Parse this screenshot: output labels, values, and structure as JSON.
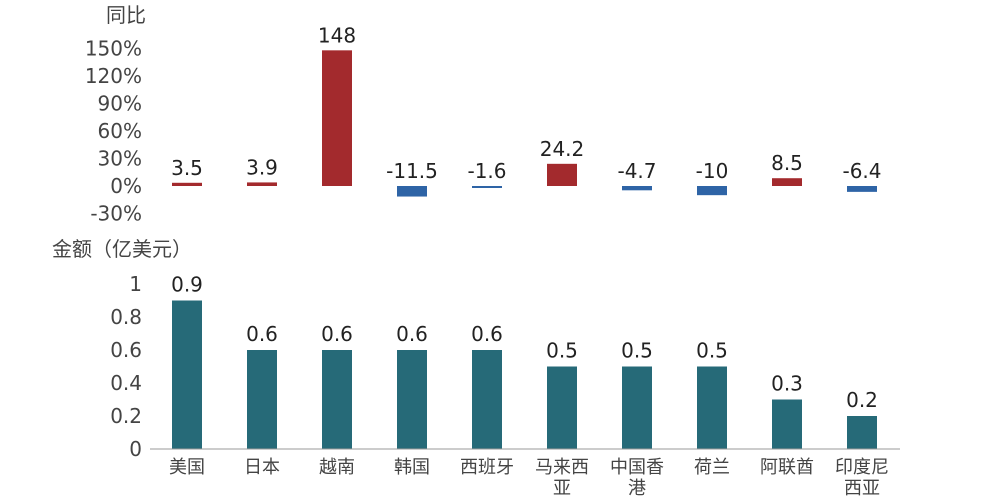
{
  "chart_data": [
    {
      "type": "bar",
      "ylabel": "同比",
      "yticks": [
        "150%",
        "120%",
        "90%",
        "60%",
        "30%",
        "0%",
        "-30%"
      ],
      "ylim": [
        -30,
        150
      ],
      "categories": [
        "美国",
        "日本",
        "越南",
        "韩国",
        "西班牙",
        "马来西亚",
        "中国香港",
        "荷兰",
        "阿联酋",
        "印度尼西亚"
      ],
      "values": [
        3.5,
        3.9,
        148,
        -11.5,
        -1.6,
        24.2,
        -4.7,
        -10,
        8.5,
        -6.4
      ],
      "data_labels": [
        "3.5",
        "3.9",
        "148",
        "-11.5",
        "-1.6",
        "24.2",
        "-4.7",
        "-10",
        "8.5",
        "-6.4"
      ],
      "colors": {
        "positive": "#a32a2d",
        "negative": "#2e64a6"
      },
      "grid": false
    },
    {
      "type": "bar",
      "ylabel": "金额（亿美元）",
      "yticks": [
        "1",
        "0.8",
        "0.6",
        "0.4",
        "0.2",
        "0"
      ],
      "ylim": [
        0,
        1
      ],
      "categories": [
        "美国",
        "日本",
        "越南",
        "韩国",
        "西班牙",
        "马来西亚",
        "中国香港",
        "荷兰",
        "阿联酋",
        "印度尼西亚"
      ],
      "category_lines": [
        [
          "美国"
        ],
        [
          "日本"
        ],
        [
          "越南"
        ],
        [
          "韩国"
        ],
        [
          "西班牙"
        ],
        [
          "马来西",
          "亚"
        ],
        [
          "中国香",
          "港"
        ],
        [
          "荷兰"
        ],
        [
          "阿联酋"
        ],
        [
          "印度尼",
          "西亚"
        ]
      ],
      "values": [
        0.9,
        0.6,
        0.6,
        0.6,
        0.6,
        0.5,
        0.5,
        0.5,
        0.3,
        0.2
      ],
      "data_labels": [
        "0.9",
        "0.6",
        "0.6",
        "0.6",
        "0.6",
        "0.5",
        "0.5",
        "0.5",
        "0.3",
        "0.2"
      ],
      "colors": {
        "bar": "#266a78",
        "axis": "#999999"
      },
      "grid": false
    }
  ]
}
